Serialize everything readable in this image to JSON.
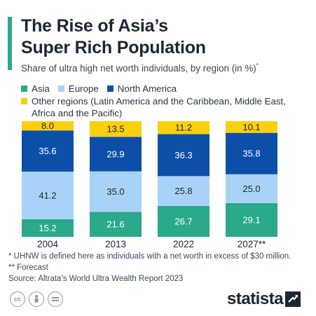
{
  "header": {
    "title_line1": "The Rise of Asia’s",
    "title_line2": "Super Rich Population",
    "subtitle": "Share of ultra high net worth individuals, by region (in %)",
    "subtitle_marker": "*"
  },
  "legend": {
    "asia": "Asia",
    "europe": "Europe",
    "north_america": "North America",
    "other": "Other regions (Latin America and the Caribbean, Middle East, Africa and the Pacific)"
  },
  "colors": {
    "asia": "#2aa98b",
    "europe": "#a9d3f6",
    "north_america": "#0d4fa8",
    "other": "#f9cf0e",
    "accent": "#2aa98b",
    "text_dark": "#1b2733"
  },
  "chart_data": {
    "type": "bar",
    "stacked": true,
    "normalized_to_100": true,
    "categories": [
      "2004",
      "2013",
      "2022",
      "2027**"
    ],
    "series": [
      {
        "name": "Asia",
        "color": "#2aa98b",
        "values": [
          15.2,
          21.6,
          26.7,
          29.1
        ]
      },
      {
        "name": "Europe",
        "color": "#a9d3f6",
        "values": [
          41.2,
          35.0,
          25.8,
          25.0
        ]
      },
      {
        "name": "North America",
        "color": "#0d4fa8",
        "values": [
          35.6,
          29.9,
          36.3,
          35.8
        ]
      },
      {
        "name": "Other regions (Latin America and the Caribbean, Middle East, Africa and the Pacific)",
        "color": "#f9cf0e",
        "values": [
          8.0,
          13.5,
          11.2,
          10.1
        ]
      }
    ],
    "data_labels": [
      [
        "15.2",
        "41.2",
        "35.6",
        "8.0"
      ],
      [
        "21.6",
        "35.0",
        "29.9",
        "13.5"
      ],
      [
        "26.7",
        "25.8",
        "36.3",
        "11.2"
      ],
      [
        "29.1",
        "25.0",
        "35.8",
        "10.1"
      ]
    ],
    "title": "The Rise of Asia’s Super Rich Population",
    "xlabel": "",
    "ylabel": "",
    "ylim": [
      0,
      100
    ],
    "grid": false,
    "legend_placement": "top"
  },
  "notes": {
    "footnote1": "*   UHNW is defined here as individuals with a net worth in excess of $30 million.",
    "footnote2": "** Forecast",
    "source": "Source: Altrata’s World Ultra Wealth Report 2023"
  },
  "footer": {
    "brand": "statista",
    "license_icons": [
      "creative-commons-icon",
      "attribution-icon",
      "no-derivatives-icon"
    ]
  }
}
